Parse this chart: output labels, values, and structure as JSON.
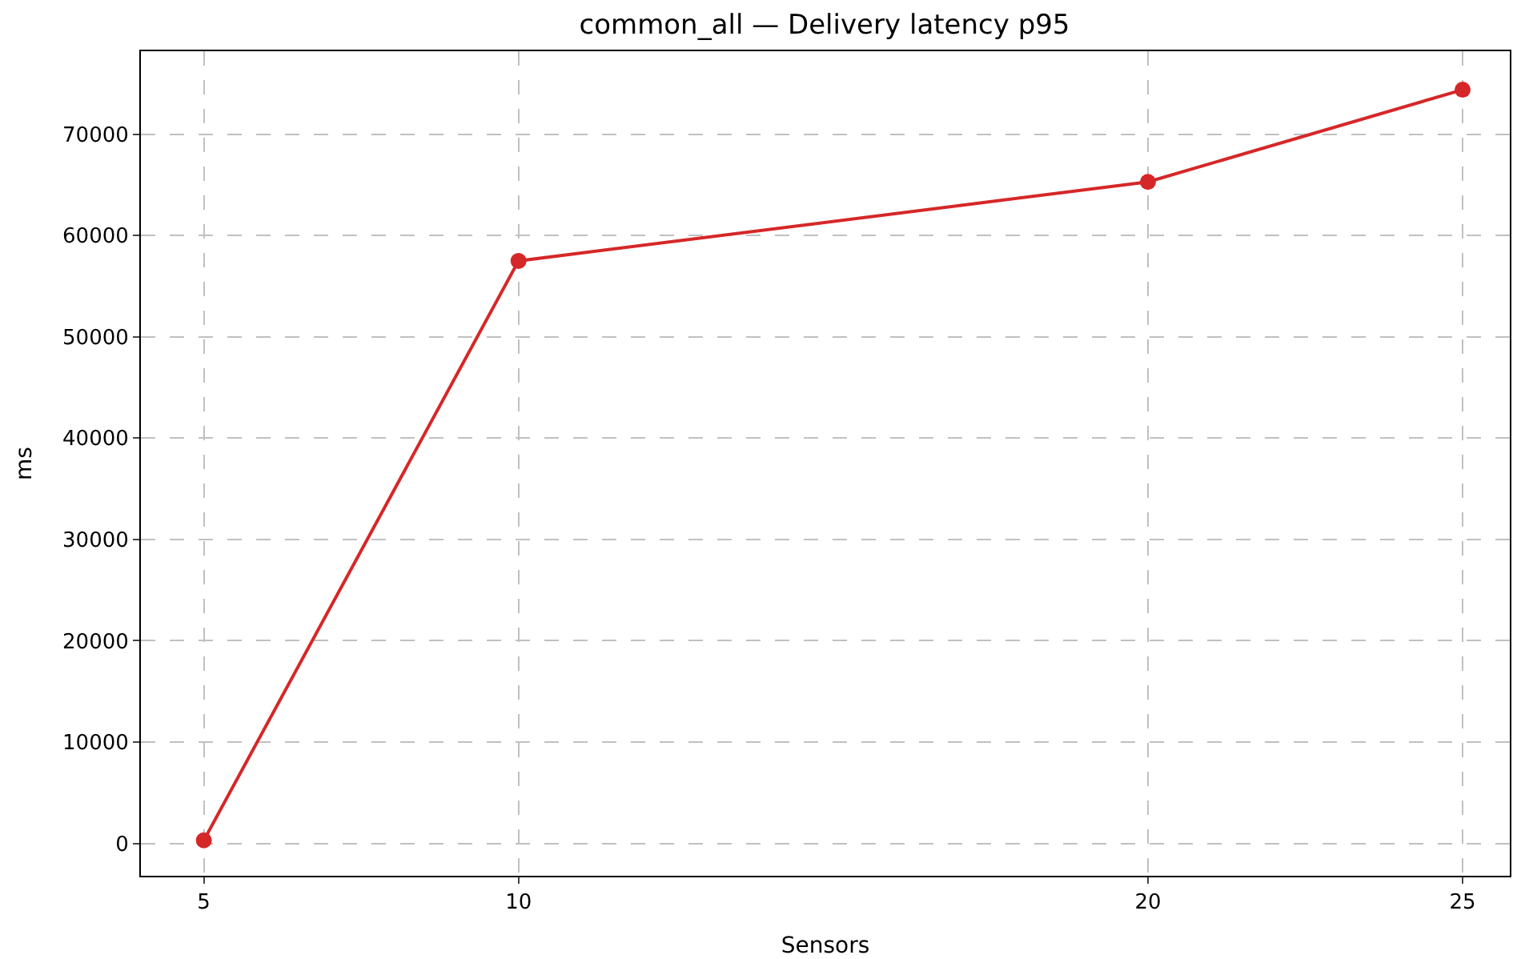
{
  "chart_data": {
    "type": "line",
    "title": "common_all — Delivery latency p95",
    "xlabel": "Sensors",
    "ylabel": "ms",
    "x": [
      5,
      10,
      20,
      25
    ],
    "series": [
      {
        "color": "#d62728",
        "values": [
          300,
          57500,
          65300,
          74400
        ]
      }
    ],
    "xlim": [
      4,
      25.75
    ],
    "xticks": [
      5,
      10,
      20,
      25
    ],
    "ylim": [
      -3200,
      78200
    ],
    "yticks": [
      0,
      10000,
      20000,
      30000,
      40000,
      50000,
      60000,
      70000
    ],
    "grid": true,
    "marker": "circle",
    "line_style": "solid",
    "legend": false
  }
}
